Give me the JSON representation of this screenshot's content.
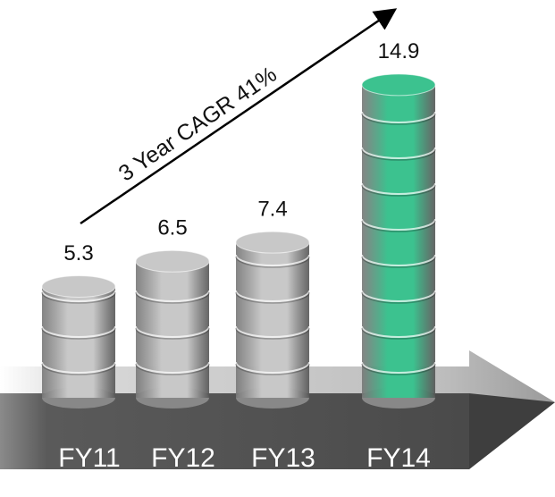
{
  "chart_data": {
    "type": "bar",
    "categories": [
      "FY11",
      "FY12",
      "FY13",
      "FY14"
    ],
    "values": [
      5.3,
      6.5,
      7.4,
      14.9
    ],
    "colors": [
      "#c8c8c8",
      "#c8c8c8",
      "#c8c8c8",
      "#3cc28f"
    ],
    "annotation": "3 Year CAGR 41%"
  }
}
